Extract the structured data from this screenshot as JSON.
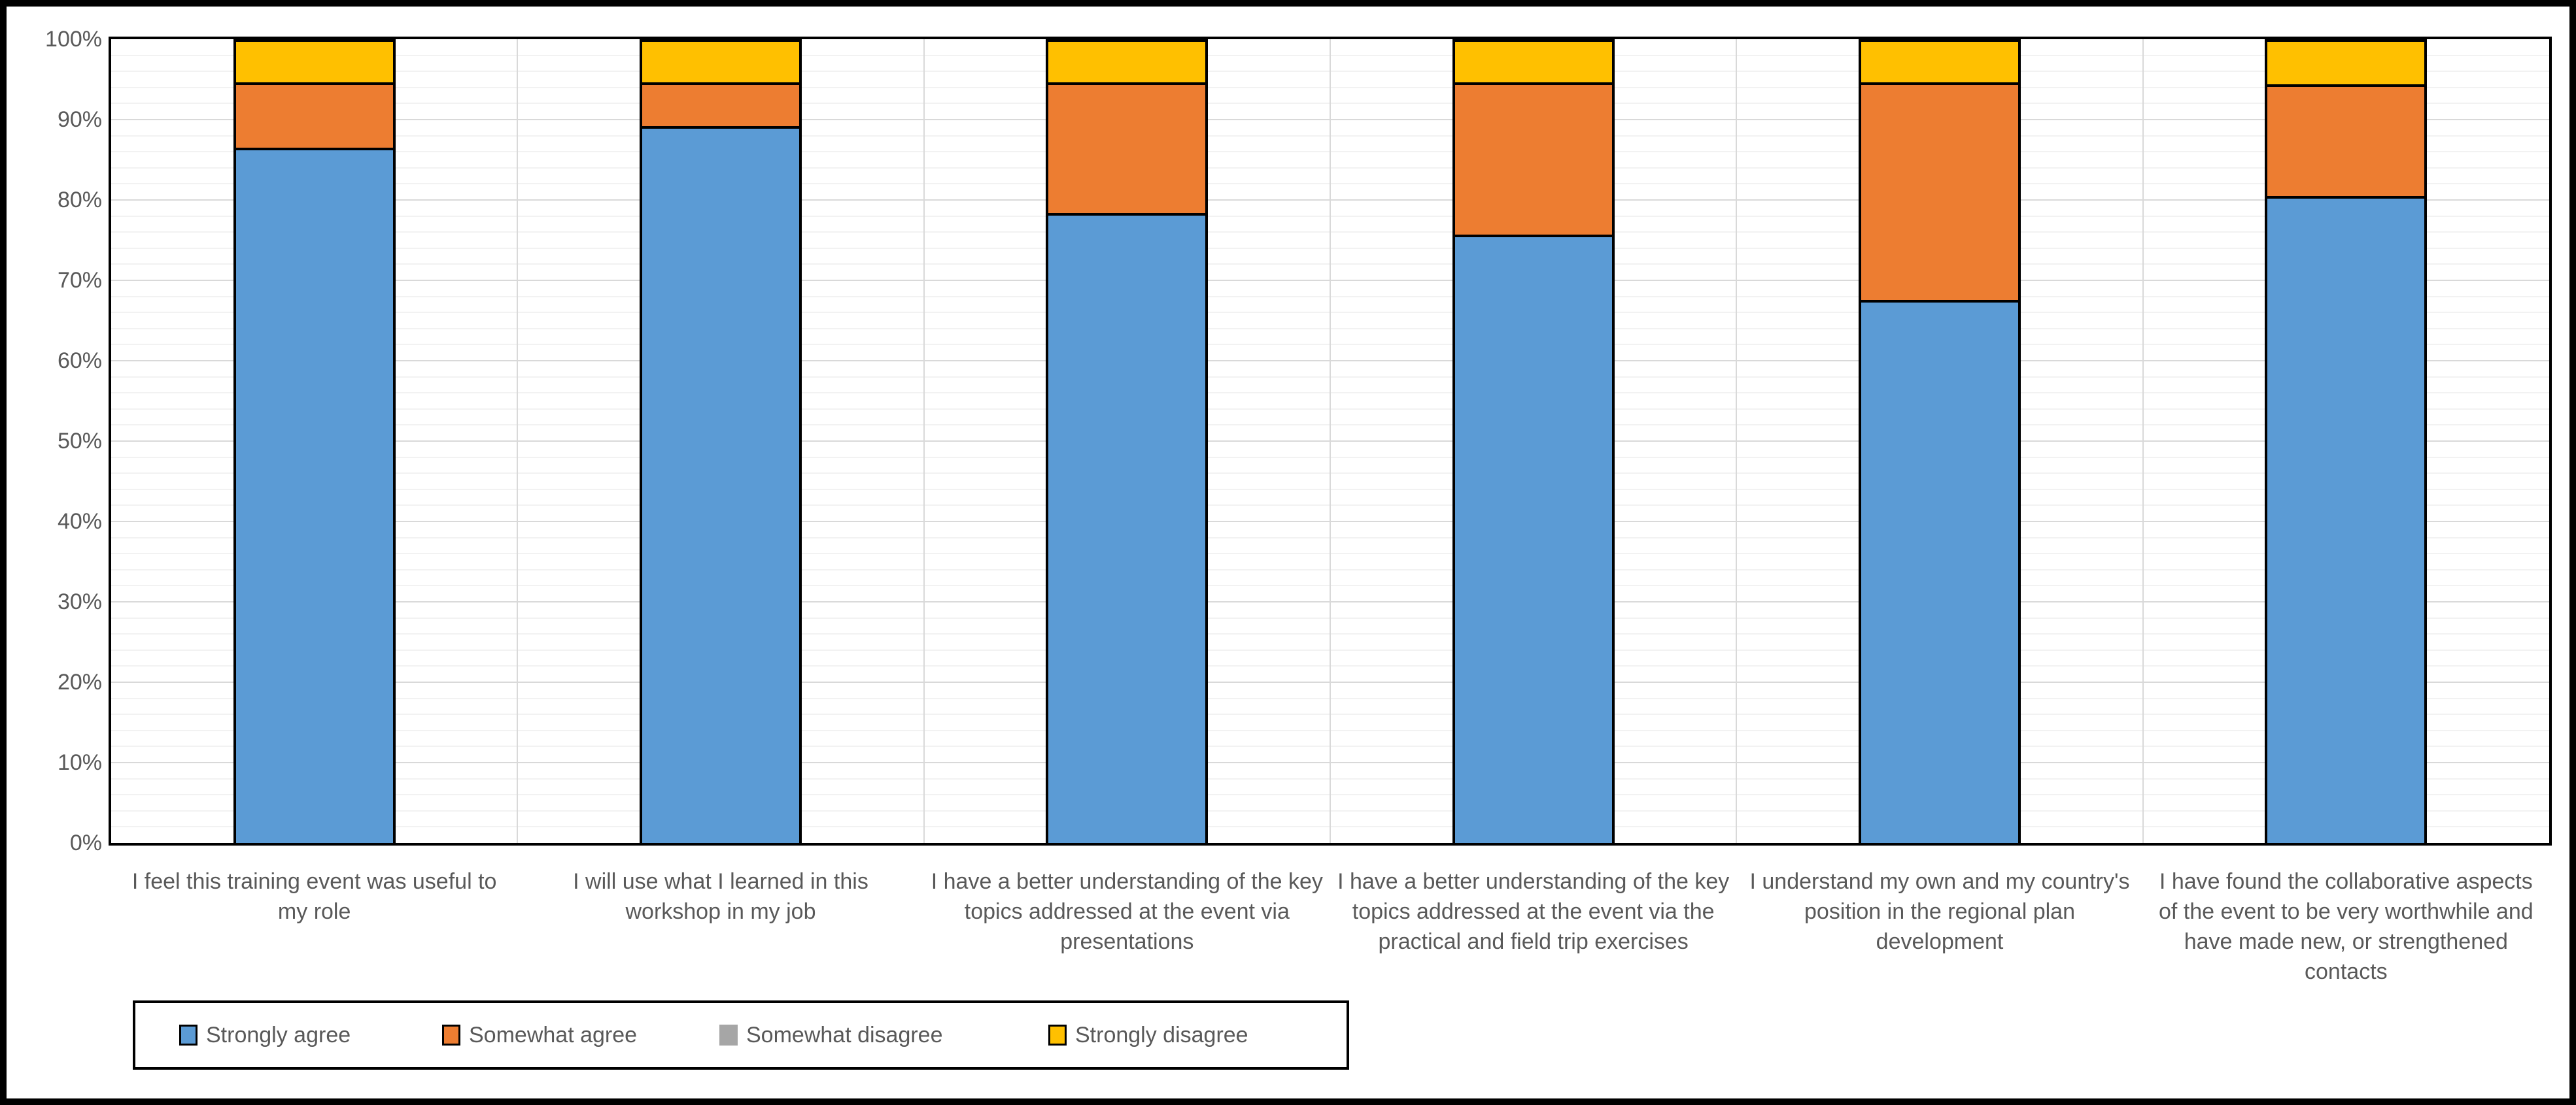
{
  "chart_data": {
    "type": "bar",
    "variant": "stacked-100-percent-column",
    "title": "",
    "xlabel": "",
    "ylabel": "",
    "categories": [
      "I feel this training event was useful to my role",
      "I will use what I learned in this workshop in my job",
      "I have a better understanding of the key topics addressed at the event via presentations",
      "I have a better understanding of the key topics addressed at the event via the practical and field trip exercises",
      "I understand my own and my country's position in the regional plan development",
      "I have found the collaborative aspects of the event to be very worthwhile and have made new, or strengthened contacts"
    ],
    "series": [
      {
        "name": "Strongly agree",
        "color": "#5B9BD5",
        "border": "#000000",
        "values": [
          86.5,
          89.2,
          78.4,
          75.7,
          67.6,
          80.5
        ]
      },
      {
        "name": "Somewhat agree",
        "color": "#ED7D31",
        "border": "#000000",
        "values": [
          8.1,
          5.4,
          16.2,
          18.9,
          27.0,
          13.9
        ]
      },
      {
        "name": "Somewhat disagree",
        "color": "#A6A6A6",
        "border": null,
        "values": [
          0,
          0,
          0,
          0,
          0,
          0
        ]
      },
      {
        "name": "Strongly disagree",
        "color": "#FFC000",
        "border": "#000000",
        "values": [
          5.4,
          5.4,
          5.4,
          5.4,
          5.4,
          5.6
        ]
      }
    ],
    "y_axis": {
      "min": 0,
      "max": 100,
      "major_unit": 10,
      "minor_unit": 2,
      "ticks": [
        {
          "value": 100,
          "label": "100%"
        },
        {
          "value": 90,
          "label": "90%"
        },
        {
          "value": 80,
          "label": "80%"
        },
        {
          "value": 70,
          "label": "70%"
        },
        {
          "value": 60,
          "label": "60%"
        },
        {
          "value": 50,
          "label": "50%"
        },
        {
          "value": 40,
          "label": "40%"
        },
        {
          "value": 30,
          "label": "30%"
        },
        {
          "value": 20,
          "label": "20%"
        },
        {
          "value": 10,
          "label": "10%"
        },
        {
          "value": 0,
          "label": "0%"
        }
      ]
    },
    "legend": {
      "position": "bottom",
      "entries": [
        "Strongly agree",
        "Somewhat agree",
        "Somewhat disagree",
        "Strongly disagree"
      ]
    },
    "grid": {
      "horizontal_major": true,
      "horizontal_minor": true,
      "vertical_category_lines": true
    }
  },
  "colors": {
    "text": "#595959",
    "grid_major": "#d9d9d9",
    "grid_minor": "#f2f2f2",
    "plot_border": "#000000",
    "figure_border": "#000000",
    "background": "#ffffff"
  }
}
